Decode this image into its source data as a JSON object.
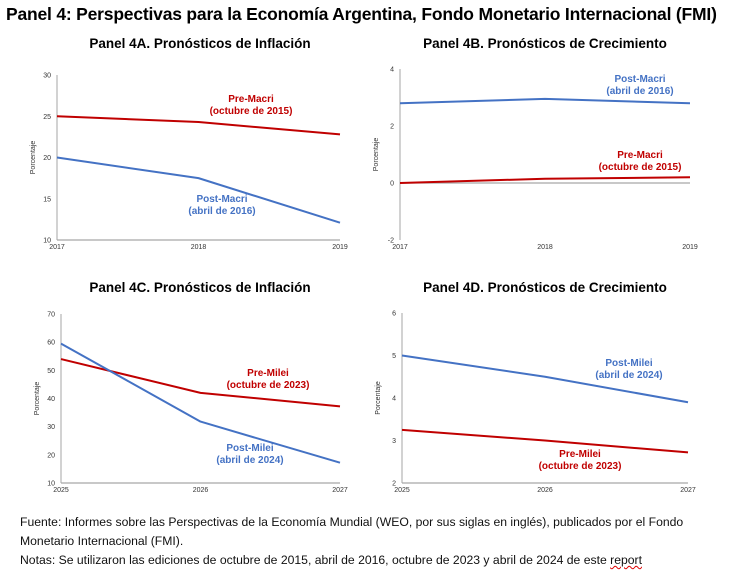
{
  "main_title": "Panel 4: Perspectivas para la Economía Argentina, Fondo Monetario Internacional (FMI)",
  "colors": {
    "pre": "#C00000",
    "post": "#4472C4",
    "axis": "#A6A6A6",
    "zero": "#A6A6A6"
  },
  "chart_data": [
    {
      "id": "4A",
      "type": "line",
      "title": "Panel 4A. Pronósticos de Inflación",
      "ylabel": "Porcentaje",
      "xlabel": "",
      "categories": [
        "2017",
        "2018",
        "2019"
      ],
      "ylim": [
        10,
        30
      ],
      "yticks": [
        10,
        15,
        20,
        25,
        30
      ],
      "series": [
        {
          "name": "Pre-Macri",
          "annotation": [
            "Pre-Macri",
            "(octubre de 2015)"
          ],
          "color": "#C00000",
          "values": [
            25.0,
            24.3,
            22.8
          ]
        },
        {
          "name": "Post-Macri",
          "annotation": [
            "Post-Macri",
            "(abril de 2016)"
          ],
          "color": "#4472C4",
          "values": [
            20.0,
            17.5,
            12.1
          ]
        }
      ]
    },
    {
      "id": "4B",
      "type": "line",
      "title": "Panel 4B. Pronósticos de Crecimiento",
      "ylabel": "Porcentaje",
      "xlabel": "",
      "categories": [
        "2017",
        "2018",
        "2019"
      ],
      "ylim": [
        -2,
        4
      ],
      "yticks": [
        -2,
        0,
        2,
        4
      ],
      "zero_line": true,
      "series": [
        {
          "name": "Post-Macri",
          "annotation": [
            "Post-Macri",
            "(abril de 2016)"
          ],
          "color": "#4472C4",
          "values": [
            2.8,
            2.95,
            2.8
          ]
        },
        {
          "name": "Pre-Macri",
          "annotation": [
            "Pre-Macri",
            "(octubre de 2015)"
          ],
          "color": "#C00000",
          "values": [
            0.0,
            0.15,
            0.2
          ]
        }
      ]
    },
    {
      "id": "4C",
      "type": "line",
      "title": "Panel 4C. Pronósticos de Inflación",
      "ylabel": "Porcentaje",
      "xlabel": "",
      "categories": [
        "2025",
        "2026",
        "2027"
      ],
      "ylim": [
        10,
        70
      ],
      "yticks": [
        10,
        20,
        30,
        40,
        50,
        60,
        70
      ],
      "series": [
        {
          "name": "Pre-Milei",
          "annotation": [
            "Pre-Milei",
            "(octubre de 2023)"
          ],
          "color": "#C00000",
          "values": [
            54.0,
            42.0,
            37.2
          ]
        },
        {
          "name": "Post-Milei",
          "annotation": [
            "Post-Milei",
            "(abril de 2024)"
          ],
          "color": "#4472C4",
          "values": [
            59.5,
            31.8,
            17.2
          ]
        }
      ]
    },
    {
      "id": "4D",
      "type": "line",
      "title": "Panel 4D. Pronósticos de Crecimiento",
      "ylabel": "Porcentaje",
      "xlabel": "",
      "categories": [
        "2025",
        "2026",
        "2027"
      ],
      "ylim": [
        2,
        6
      ],
      "yticks": [
        2,
        3,
        4,
        5,
        6
      ],
      "series": [
        {
          "name": "Post-Milei",
          "annotation": [
            "Post-Milei",
            "(abril de 2024)"
          ],
          "color": "#4472C4",
          "values": [
            5.0,
            4.5,
            3.9
          ]
        },
        {
          "name": "Pre-Milei",
          "annotation": [
            "Pre-Milei",
            "(octubre de 2023)"
          ],
          "color": "#C00000",
          "values": [
            3.25,
            3.0,
            2.72
          ]
        }
      ]
    }
  ],
  "footer": {
    "source_line1": "Fuente: Informes sobre las Perspectivas de la Economía Mundial (WEO, por sus siglas en inglés), publicados por el Fondo",
    "source_line2": "Monetario Internacional (FMI).",
    "notes_prefix": "Notas: Se utilizaron las ediciones de octubre de 2015, abril de 2016, octubre de 2023 y abril de 2024 de este ",
    "notes_last_word": "report"
  }
}
